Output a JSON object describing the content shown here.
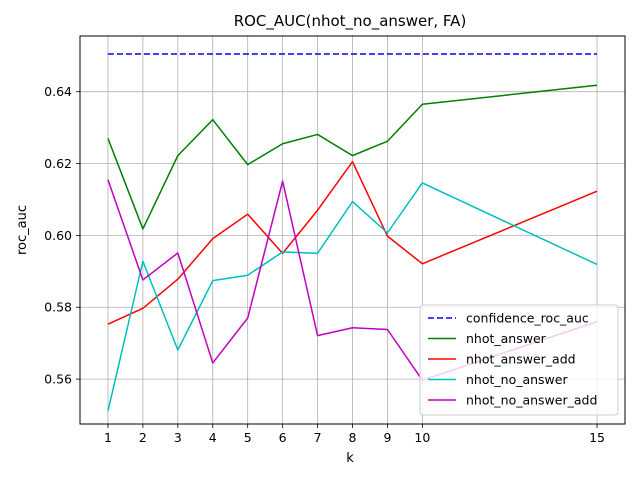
{
  "chart_data": {
    "type": "line",
    "title": "ROC_AUC(nhot_no_answer, FA)",
    "xlabel": "k",
    "ylabel": "roc_auc",
    "x": [
      1,
      2,
      3,
      4,
      5,
      6,
      7,
      8,
      9,
      10,
      15
    ],
    "x_ticks": [
      "1",
      "2",
      "3",
      "4",
      "5",
      "6",
      "7",
      "8",
      "9",
      "10",
      "15"
    ],
    "y_ticks": [
      "0.56",
      "0.58",
      "0.60",
      "0.62",
      "0.64"
    ],
    "xlim": [
      0.2,
      15.8
    ],
    "ylim": [
      0.5475,
      0.6555
    ],
    "grid": true,
    "legend_position": "lower right",
    "series": [
      {
        "name": "confidence_roc_auc",
        "color": "#0000ff",
        "style": "dashed",
        "values": [
          0.6505,
          0.6505,
          0.6505,
          0.6505,
          0.6505,
          0.6505,
          0.6505,
          0.6505,
          0.6505,
          0.6505,
          0.6505
        ]
      },
      {
        "name": "nhot_answer",
        "color": "#008000",
        "style": "solid",
        "values": [
          0.627,
          0.6018,
          0.6222,
          0.6322,
          0.6197,
          0.6255,
          0.6281,
          0.6222,
          0.6262,
          0.6365,
          0.6418
        ]
      },
      {
        "name": "nhot_answer_add",
        "color": "#ff0000",
        "style": "solid",
        "values": [
          0.5753,
          0.5797,
          0.5878,
          0.5991,
          0.6059,
          0.595,
          0.607,
          0.6205,
          0.5998,
          0.5921,
          0.6123
        ]
      },
      {
        "name": "nhot_no_answer",
        "color": "#00bfbf",
        "style": "solid",
        "values": [
          0.5511,
          0.5928,
          0.5681,
          0.5874,
          0.5889,
          0.5954,
          0.595,
          0.6094,
          0.6007,
          0.6146,
          0.5919
        ]
      },
      {
        "name": "nhot_no_answer_add",
        "color": "#bf00bf",
        "style": "solid",
        "values": [
          0.6155,
          0.5876,
          0.5951,
          0.5645,
          0.577,
          0.6151,
          0.5721,
          0.5743,
          0.5738,
          0.5597,
          0.576
        ]
      }
    ]
  }
}
